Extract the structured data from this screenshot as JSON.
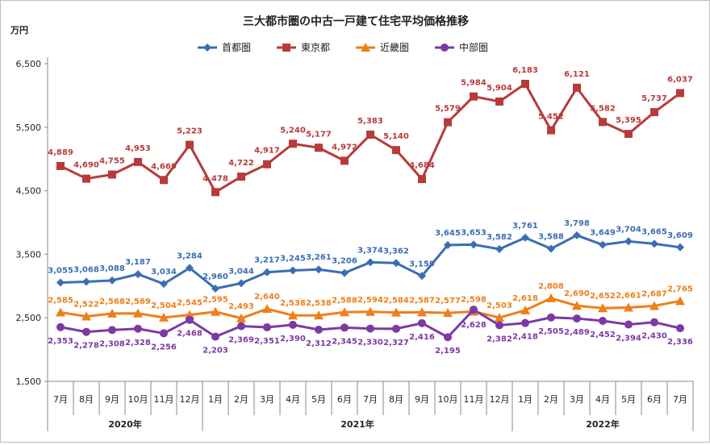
{
  "chart_data": {
    "type": "line",
    "title": "三大都市圏の中古一戸建て住宅平均価格推移",
    "ylabel": "万円",
    "ylim": [
      1500,
      6500
    ],
    "yticks": [
      1500,
      2500,
      3500,
      4500,
      5500,
      6500
    ],
    "ytick_labels": [
      "1,500",
      "2,500",
      "3,500",
      "4,500",
      "5,500",
      "6,500"
    ],
    "legend_position": "top",
    "grid": false,
    "categories": [
      "7月",
      "8月",
      "9月",
      "10月",
      "11月",
      "12月",
      "1月",
      "2月",
      "3月",
      "4月",
      "5月",
      "6月",
      "7月",
      "8月",
      "9月",
      "10月",
      "11月",
      "12月",
      "1月",
      "2月",
      "3月",
      "4月",
      "5月",
      "6月",
      "7月"
    ],
    "year_groups": [
      {
        "label": "2020年",
        "start": 0,
        "end": 5
      },
      {
        "label": "2021年",
        "start": 6,
        "end": 17
      },
      {
        "label": "2022年",
        "start": 18,
        "end": 24
      }
    ],
    "series": [
      {
        "name": "首都圏",
        "color": "#3b6db3",
        "marker": "diamond",
        "values": [
          3055,
          3068,
          3088,
          3187,
          3034,
          3284,
          2960,
          3044,
          3217,
          3245,
          3261,
          3206,
          3374,
          3362,
          3159,
          3645,
          3653,
          3582,
          3761,
          3588,
          3798,
          3649,
          3704,
          3665,
          3609
        ],
        "labels": [
          "3,055",
          "3,068",
          "3,088",
          "3,187",
          "3,034",
          "3,284",
          "2,960",
          "3,044",
          "3,217",
          "3,245",
          "3,261",
          "3,206",
          "3,374",
          "3,362",
          "3,159",
          "3,645",
          "3,653",
          "3,582",
          "3,761",
          "3,588",
          "3,798",
          "3,649",
          "3,704",
          "3,665",
          "3,609"
        ]
      },
      {
        "name": "東京都",
        "color": "#b83a3a",
        "marker": "square",
        "values": [
          4889,
          4690,
          4755,
          4953,
          4669,
          5223,
          4478,
          4722,
          4917,
          5240,
          5177,
          4972,
          5383,
          5140,
          4684,
          5579,
          5984,
          5904,
          6183,
          5452,
          6121,
          5582,
          5395,
          5737,
          6037
        ],
        "labels": [
          "4,889",
          "4,690",
          "4,755",
          "4,953",
          "4,669",
          "5,223",
          "4,478",
          "4,722",
          "4,917",
          "5,240",
          "5,177",
          "4,972",
          "5,383",
          "5,140",
          "4,684",
          "5,579",
          "5,984",
          "5,904",
          "6,183",
          "5,452",
          "6,121",
          "5,582",
          "5,395",
          "5,737",
          "6,037"
        ]
      },
      {
        "name": "近畿圏",
        "color": "#ee7f1a",
        "marker": "triangle",
        "values": [
          2585,
          2522,
          2568,
          2569,
          2504,
          2545,
          2595,
          2493,
          2640,
          2538,
          2538,
          2588,
          2594,
          2584,
          2587,
          2577,
          2598,
          2503,
          2618,
          2808,
          2690,
          2652,
          2661,
          2687,
          2765
        ],
        "labels": [
          "2,585",
          "2,522",
          "2,568",
          "2,569",
          "2,504",
          "2,545",
          "2,595",
          "2,493",
          "2,640",
          "2,538",
          "2,538",
          "2,588",
          "2,594",
          "2,584",
          "2,587",
          "2,577",
          "2,598",
          "2,503",
          "2,618",
          "2,808",
          "2,690",
          "2,652",
          "2,661",
          "2,687",
          "2,765"
        ]
      },
      {
        "name": "中部圏",
        "color": "#7b3aa3",
        "marker": "circle",
        "values": [
          2353,
          2278,
          2308,
          2328,
          2256,
          2468,
          2203,
          2369,
          2351,
          2390,
          2312,
          2345,
          2330,
          2327,
          2416,
          2195,
          2628,
          2382,
          2418,
          2505,
          2489,
          2452,
          2394,
          2430,
          2336
        ],
        "labels": [
          "2,353",
          "2,278",
          "2,308",
          "2,328",
          "2,256",
          "2,468",
          "2,203",
          "2,369",
          "2,351",
          "2,390",
          "2,312",
          "2,345",
          "2,330",
          "2,327",
          "2,416",
          "2,195",
          "2,628",
          "2,382",
          "2,418",
          "2,505",
          "2,489",
          "2,452",
          "2,394",
          "2,430",
          "2,336"
        ]
      }
    ]
  }
}
